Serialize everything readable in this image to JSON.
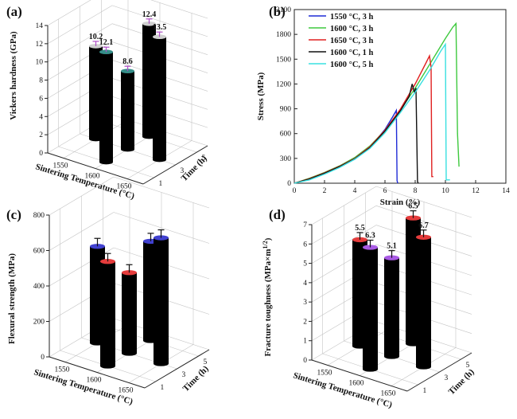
{
  "chart_data": [
    {
      "panel": "(a)",
      "type": "bar",
      "ylabel": "Vickers hardness (GPa)",
      "xlabel": "Sintering Temperature (°C)",
      "zlabel": "Time (h)",
      "ylim": [
        0,
        14
      ],
      "yticks": [
        0,
        2,
        4,
        6,
        8,
        10,
        12,
        14
      ],
      "temperature_ticks": [
        "1550",
        "1600",
        "1650"
      ],
      "time_ticks": [
        "1",
        "3",
        "5"
      ],
      "bars": [
        {
          "temperature": "1550",
          "time": "3",
          "value": 10.2,
          "label": "10.2",
          "color": "#c8c8c8"
        },
        {
          "temperature": "1600",
          "time": "3",
          "value": 8.6,
          "label": "8.6",
          "color": "#127a74"
        },
        {
          "temperature": "1650",
          "time": "3",
          "value": 13.5,
          "label": "13.5",
          "color": "#c8c8c8"
        },
        {
          "temperature": "1600",
          "time": "1",
          "value": 12.1,
          "label": "12.1",
          "color": "#127a74"
        },
        {
          "temperature": "1600",
          "time": "5",
          "value": 12.4,
          "label": "12.4",
          "color": "#c8c8c8"
        }
      ],
      "error_color": "#b04fc8"
    },
    {
      "panel": "(b)",
      "type": "line",
      "xlabel": "Strain (%)",
      "ylabel": "Stress (MPa)",
      "xlim": [
        0,
        14
      ],
      "ylim": [
        0,
        2100
      ],
      "xticks": [
        0,
        2,
        4,
        6,
        8,
        10,
        12,
        14
      ],
      "yticks": [
        0,
        300,
        600,
        900,
        1200,
        1500,
        1800,
        2100
      ],
      "legend_position": "top-left",
      "series": [
        {
          "name": "1550 °C, 3 h",
          "color": "#1f2bd6",
          "x": [
            0,
            1,
            2,
            3,
            4,
            5,
            6,
            6.5,
            6.75,
            6.8,
            6.85
          ],
          "y": [
            0,
            50,
            120,
            200,
            290,
            430,
            650,
            800,
            880,
            30,
            0
          ]
        },
        {
          "name": "1600 °C, 3 h",
          "color": "#3ec93e",
          "x": [
            0,
            1,
            2,
            3,
            4,
            5,
            6,
            7,
            8,
            9,
            10,
            10.5,
            10.7,
            10.8,
            10.9
          ],
          "y": [
            0,
            60,
            130,
            210,
            310,
            450,
            640,
            880,
            1150,
            1450,
            1750,
            1890,
            1930,
            600,
            200
          ]
        },
        {
          "name": "1650 °C, 3 h",
          "color": "#e02020",
          "x": [
            0,
            1,
            2,
            3,
            4,
            5,
            6,
            7,
            8,
            8.7,
            8.95,
            9.05,
            9.1,
            9.2
          ],
          "y": [
            0,
            55,
            125,
            205,
            300,
            440,
            640,
            890,
            1200,
            1450,
            1540,
            1400,
            80,
            80
          ]
        },
        {
          "name": "1600 °C, 1 h",
          "color": "#111111",
          "x": [
            0,
            1,
            2,
            3,
            4,
            5,
            6,
            7,
            7.6,
            7.8,
            7.95,
            8.05,
            8.15,
            8.2
          ],
          "y": [
            0,
            50,
            120,
            200,
            295,
            430,
            630,
            870,
            1050,
            1200,
            1100,
            1150,
            20,
            0
          ]
        },
        {
          "name": "1600 °C, 5 h",
          "color": "#39e0e0",
          "x": [
            0,
            1,
            2,
            3,
            4,
            5,
            6,
            7,
            8,
            9,
            9.7,
            10.0,
            10.05,
            10.3
          ],
          "y": [
            0,
            40,
            110,
            190,
            290,
            420,
            610,
            850,
            1100,
            1380,
            1600,
            1680,
            40,
            40
          ]
        }
      ]
    },
    {
      "panel": "(c)",
      "type": "bar",
      "ylabel": "Flexural strength (MPa)",
      "xlabel": "Sintering Temperature (°C)",
      "zlabel": "Time (h)",
      "ylim": [
        0,
        800
      ],
      "yticks": [
        0,
        200,
        400,
        600,
        800
      ],
      "temperature_ticks": [
        "1550",
        "1600",
        "1650"
      ],
      "time_ticks": [
        "1",
        "3",
        "5"
      ],
      "bars": [
        {
          "temperature": "1550",
          "time": "3",
          "value": 545,
          "color": "#1f1fc8"
        },
        {
          "temperature": "1600",
          "time": "3",
          "value": 455,
          "color": "#e01a1a"
        },
        {
          "temperature": "1650",
          "time": "3",
          "value": 710,
          "color": "#1f1fc8"
        },
        {
          "temperature": "1600",
          "time": "1",
          "value": 590,
          "color": "#e01a1a"
        },
        {
          "temperature": "1600",
          "time": "5",
          "value": 560,
          "color": "#1f1fc8"
        }
      ],
      "error_color": "#111111"
    },
    {
      "panel": "(d)",
      "type": "bar",
      "ylabel": "Fracture toughness (MPa×m",
      "ylabel_sup": "1/2",
      "ylabel_end": ")",
      "xlabel": "Sintering Temperature (°C)",
      "zlabel": "Time (h)",
      "ylim": [
        0,
        7
      ],
      "yticks": [
        0,
        1,
        2,
        3,
        4,
        5,
        6,
        7
      ],
      "temperature_ticks": [
        "1550",
        "1600",
        "1650"
      ],
      "time_ticks": [
        "1",
        "3",
        "5"
      ],
      "bars": [
        {
          "temperature": "1550",
          "time": "3",
          "value": 5.5,
          "label": "5.5",
          "color": "#e01a1a"
        },
        {
          "temperature": "1600",
          "time": "3",
          "value": 5.1,
          "label": "5.1",
          "color": "#9a3de0"
        },
        {
          "temperature": "1650",
          "time": "3",
          "value": 6.7,
          "label": "6.7",
          "color": "#e01a1a"
        },
        {
          "temperature": "1600",
          "time": "1",
          "value": 6.3,
          "label": "6.3",
          "color": "#9a3de0"
        },
        {
          "temperature": "1600",
          "time": "5",
          "value": 6.5,
          "label": "6.5",
          "color": "#e01a1a"
        }
      ],
      "error_color": "#111111"
    }
  ]
}
